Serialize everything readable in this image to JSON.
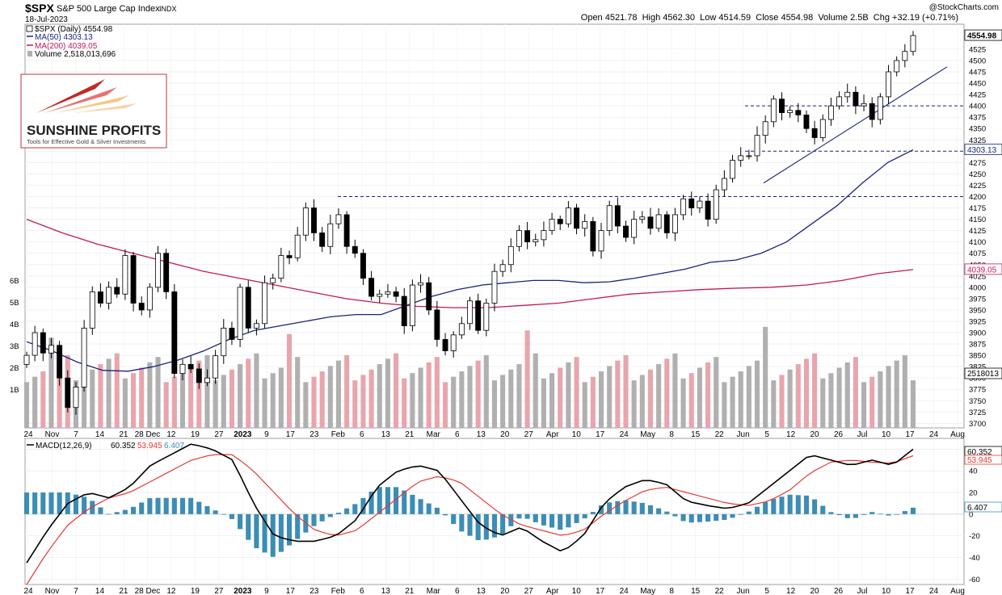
{
  "header": {
    "symbol": "$SPX",
    "name": "S&P 500 Large Cap Index",
    "exchange": "INDX",
    "date": "18-Jul-2023",
    "watermark": "@StockCharts.com",
    "ohlc": "Open 4521.78  High 4562.30  Low 4514.59  Close 4554.98  Volume 2.5B  Chg +32.19 (+0.71%)"
  },
  "legend": {
    "price": "$SPX (Daily) 4554.98",
    "ma50": "MA(50) 4303.13",
    "ma200": "MA(200) 4039.05",
    "volume": "Volume 2,518,013,696"
  },
  "logo": {
    "title": "SUNSHINE PROFITS",
    "tagline": "Tools for Effective Gold & Silver Investments"
  },
  "macd_legend": {
    "label": "MACD(12,26,9)",
    "macd": "60.352",
    "signal": "53.945",
    "hist": "6.407"
  },
  "colors": {
    "up": "#ffffff",
    "down": "#000000",
    "ma50": "#1a237e",
    "ma200": "#c2185b",
    "vol_up": "#b0b0b0",
    "vol_down": "#e8a5ad",
    "macd": "#000000",
    "signal": "#e53935",
    "histogram": "#3b8db5",
    "hline": "#1a237e"
  },
  "chart_data": {
    "type": "candlestick",
    "date_range": [
      "2022-10-24",
      "2023-07-18"
    ],
    "x_tick_labels": [
      "24",
      "Nov",
      "7",
      "14",
      "21",
      "28 Dec",
      "12",
      "19",
      "27",
      "2023",
      "9",
      "17",
      "23",
      "Feb",
      "6",
      "13",
      "21",
      "Mar",
      "6",
      "13",
      "20",
      "27",
      "Apr",
      "10",
      "17",
      "24",
      "May",
      "8",
      "15",
      "22",
      "Jun",
      "5",
      "12",
      "20",
      "26",
      "Jul",
      "10",
      "17",
      "24",
      "Aug"
    ],
    "price_axis": {
      "min": 3690,
      "max": 4580,
      "ticks": [
        3700,
        3725,
        3750,
        3775,
        3800,
        3825,
        3850,
        3875,
        3900,
        3925,
        3950,
        3975,
        4000,
        4025,
        4050,
        4075,
        4100,
        4125,
        4150,
        4175,
        4200,
        4225,
        4250,
        4275,
        4300,
        4325,
        4350,
        4375,
        4400,
        4425,
        4450,
        4475,
        4500,
        4525
      ]
    },
    "volume_axis": {
      "ticks": [
        "1B",
        "2B",
        "3B",
        "4B",
        "5B",
        "6B"
      ]
    },
    "last_close": "4554.98",
    "ma50_last": "4303.13",
    "ma200_last": "4039.05",
    "volume_last": "2518013",
    "horizontal_lines": [
      4200,
      4300,
      4400
    ],
    "trendline": {
      "from": [
        "2023-06-01",
        4230
      ],
      "to": [
        "2023-07-18",
        4475
      ]
    },
    "price_series": [
      3850,
      3900,
      3855,
      3872,
      3800,
      3735,
      3780,
      3910,
      3990,
      3965,
      4000,
      3985,
      4070,
      3965,
      3950,
      4000,
      4075,
      3990,
      3810,
      3830,
      3820,
      3790,
      3800,
      3849,
      3910,
      3885,
      4000,
      3910,
      3920,
      4010,
      4020,
      4070,
      4065,
      4115,
      4175,
      4120,
      4090,
      4140,
      4160,
      4090,
      4075,
      4020,
      3980,
      3985,
      3990,
      3980,
      3915,
      4005,
      4010,
      3950,
      3885,
      3860,
      3895,
      3920,
      3970,
      3905,
      3965,
      4035,
      4050,
      4090,
      4125,
      4100,
      4105,
      4125,
      4150,
      4140,
      4175,
      4130,
      4145,
      4080,
      4125,
      4180,
      4135,
      4110,
      4150,
      4155,
      4130,
      4160,
      4120,
      4160,
      4195,
      4175,
      4190,
      4150,
      4215,
      4240,
      4280,
      4290,
      4290,
      4335,
      4365,
      4415,
      4385,
      4390,
      4380,
      4350,
      4330,
      4370,
      4400,
      4420,
      4430,
      4400,
      4405,
      4370,
      4420,
      4475,
      4500,
      4520,
      4555
    ],
    "ma50_series": [
      3880,
      3860,
      3835,
      3817,
      3815,
      3825,
      3840,
      3860,
      3885,
      3905,
      3915,
      3925,
      3935,
      3940,
      3940,
      3960,
      3980,
      3995,
      4005,
      4010,
      4015,
      4015,
      4010,
      4012,
      4020,
      4030,
      4040,
      4055,
      4060,
      4075,
      4100,
      4140,
      4180,
      4230,
      4275,
      4303
    ],
    "ma200_series": [
      4150,
      4120,
      4095,
      4075,
      4055,
      4035,
      4020,
      4005,
      3990,
      3975,
      3965,
      3958,
      3955,
      3955,
      3960,
      3965,
      3975,
      3985,
      3990,
      3995,
      3998,
      4000,
      4005,
      4015,
      4030,
      4039
    ],
    "macd_axis": {
      "min": -65,
      "max": 70,
      "ticks": [
        -60,
        -40,
        -20,
        0,
        20,
        40,
        60
      ]
    },
    "macd_series": [
      -45,
      -15,
      10,
      20,
      15,
      25,
      45,
      55,
      65,
      60,
      50,
      10,
      -20,
      -25,
      -25,
      -20,
      -5,
      25,
      40,
      45,
      40,
      15,
      -10,
      -20,
      -12,
      -25,
      -35,
      -20,
      10,
      25,
      32,
      28,
      12,
      8,
      5,
      10,
      25,
      40,
      55,
      50,
      45,
      50,
      45,
      60
    ],
    "signal_series": [
      -65,
      -35,
      -10,
      5,
      15,
      20,
      30,
      40,
      50,
      55,
      55,
      40,
      20,
      0,
      -15,
      -20,
      -15,
      0,
      15,
      30,
      35,
      30,
      15,
      0,
      -10,
      -15,
      -20,
      -15,
      0,
      12,
      22,
      25,
      20,
      15,
      10,
      8,
      12,
      22,
      38,
      48,
      50,
      48,
      47,
      54
    ]
  }
}
